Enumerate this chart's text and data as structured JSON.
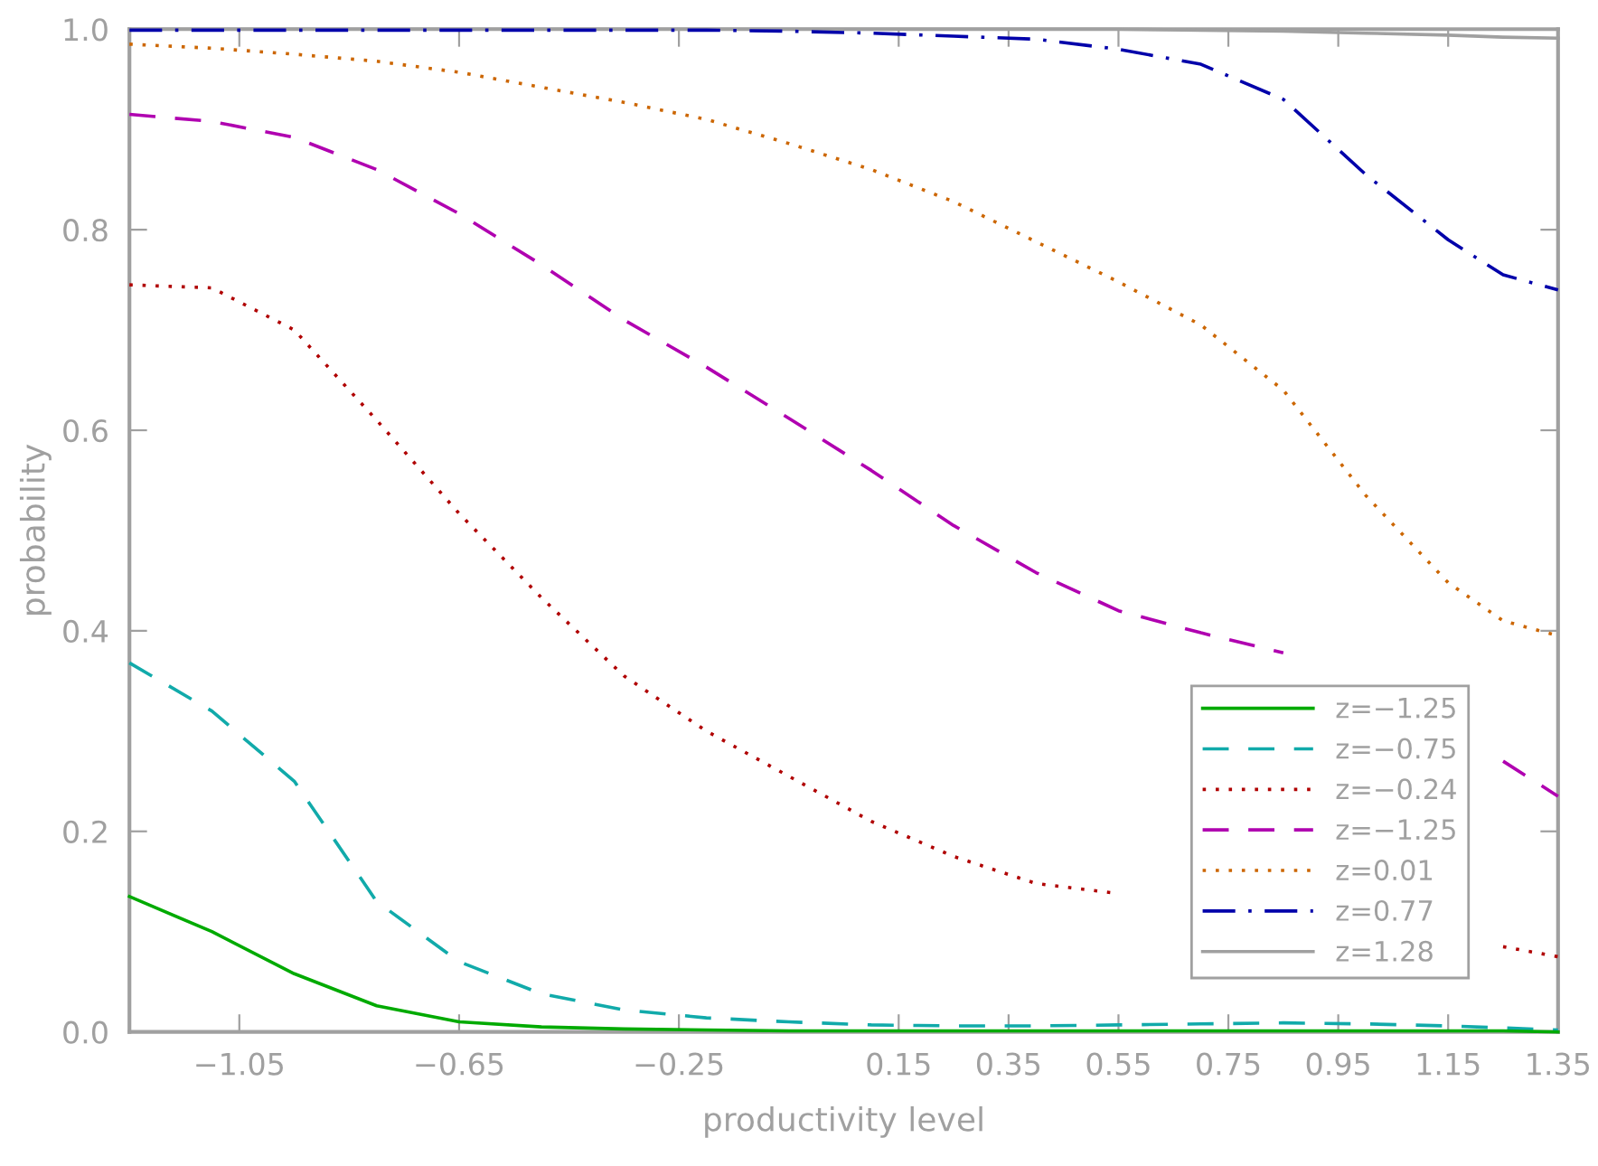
{
  "chart_data": {
    "type": "line",
    "xlabel": "productivity level",
    "ylabel": "probability",
    "x": [
      -1.25,
      -1.1,
      -0.95,
      -0.8,
      -0.65,
      -0.5,
      -0.35,
      -0.2,
      -0.05,
      0.1,
      0.25,
      0.4,
      0.55,
      0.7,
      0.85,
      1.0,
      1.15,
      1.25,
      1.35
    ],
    "xlim": [
      -1.25,
      1.35
    ],
    "xticks": [
      -1.05,
      -0.65,
      -0.25,
      0.15,
      0.35,
      0.55,
      0.75,
      0.95,
      1.15,
      1.35
    ],
    "ylim": [
      0,
      1
    ],
    "yticks": [
      {
        "value": 0,
        "label": "0.0"
      },
      {
        "value": 0.2,
        "label": "0.2"
      },
      {
        "value": 0.4,
        "label": "0.4"
      },
      {
        "value": 0.6,
        "label": "0.6"
      },
      {
        "value": 0.8,
        "label": "0.8"
      },
      {
        "value": 1,
        "label": "1.0"
      }
    ],
    "grid": false,
    "legend": "bottom right",
    "series": [
      {
        "name": "z=−1.25",
        "color": "#00aa00",
        "line_style": "solid",
        "values": [
          0.135,
          0.1,
          0.058,
          0.026,
          0.01,
          0.005,
          0.003,
          0.002,
          0.001,
          0.001,
          0.001,
          0.001,
          0.001,
          0.001,
          0.001,
          0.001,
          0.001,
          0.001,
          0.0
        ]
      },
      {
        "name": "z=−0.75",
        "color": "#11aaaa",
        "line_style": "dashed",
        "values": [
          0.368,
          0.32,
          0.25,
          0.13,
          0.07,
          0.038,
          0.022,
          0.014,
          0.01,
          0.007,
          0.006,
          0.006,
          0.007,
          0.008,
          0.009,
          0.008,
          0.006,
          0.004,
          0.002
        ]
      },
      {
        "name": "z=−0.24",
        "color": "#b00000",
        "line_style": "dotted",
        "values": [
          0.745,
          0.742,
          0.7,
          0.61,
          0.517,
          0.433,
          0.355,
          0.3,
          0.255,
          0.21,
          0.175,
          0.148,
          0.138,
          null,
          null,
          null,
          null,
          0.085,
          0.075
        ]
      },
      {
        "name": "z=−1.25",
        "color": "#b000b0",
        "line_style": "dashed",
        "values": [
          0.915,
          0.908,
          0.892,
          0.86,
          0.816,
          0.765,
          0.71,
          0.663,
          0.612,
          0.56,
          0.505,
          0.458,
          0.42,
          0.398,
          0.378,
          null,
          null,
          0.27,
          0.235
        ]
      },
      {
        "name": "z=0.01",
        "color": "#cc6600",
        "line_style": "dotted",
        "values": [
          0.985,
          0.981,
          0.975,
          0.968,
          0.957,
          0.942,
          0.927,
          0.91,
          0.886,
          0.86,
          0.828,
          0.788,
          0.748,
          0.705,
          0.64,
          0.535,
          0.448,
          0.41,
          0.395
        ]
      },
      {
        "name": "z=0.77",
        "color": "#0000aa",
        "line_style": "dashdot",
        "values": [
          0.999,
          0.999,
          0.999,
          0.999,
          0.999,
          0.999,
          0.999,
          0.999,
          0.998,
          0.996,
          0.993,
          0.99,
          0.98,
          0.965,
          0.93,
          0.855,
          0.79,
          0.755,
          0.74
        ]
      },
      {
        "name": "z=1.28",
        "color": "#a0a0a0",
        "line_style": "solid",
        "values": [
          1.0,
          1.0,
          1.0,
          1.0,
          1.0,
          1.0,
          1.0,
          1.0,
          1.0,
          1.0,
          1.0,
          1.0,
          1.0,
          0.999,
          0.998,
          0.996,
          0.994,
          0.992,
          0.991
        ]
      }
    ]
  }
}
